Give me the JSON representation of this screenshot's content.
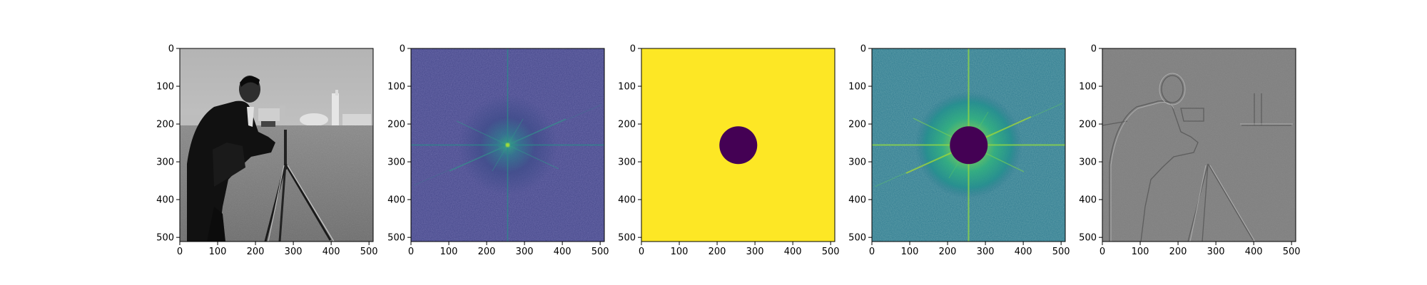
{
  "figure": {
    "panel_count": 5,
    "background": "#ffffff"
  },
  "chart_data": [
    {
      "type": "heatmap",
      "image_content": "grayscale photograph: man with camera on tripod, buildings on horizon, grass field",
      "colormap": "gray",
      "xlim": [
        0,
        511
      ],
      "ylim": [
        511,
        0
      ],
      "xticks": [
        0,
        100,
        200,
        300,
        400,
        500
      ],
      "yticks": [
        0,
        100,
        200,
        300,
        400,
        500
      ],
      "grid": false
    },
    {
      "type": "heatmap",
      "image_content": "centered log-magnitude Fourier spectrum of the photograph",
      "colormap": "viridis",
      "xlim": [
        0,
        511
      ],
      "ylim": [
        511,
        0
      ],
      "xticks": [
        0,
        100,
        200,
        300,
        400,
        500
      ],
      "yticks": [
        0,
        100,
        200,
        300,
        400,
        500
      ],
      "grid": false
    },
    {
      "type": "heatmap",
      "image_content": "circular mask: disc of value 0 centered at (256, 256) on a field of value 1",
      "colormap": "viridis",
      "mask_center": [
        256,
        256
      ],
      "mask_radius": 50,
      "xlim": [
        0,
        511
      ],
      "ylim": [
        511,
        0
      ],
      "xticks": [
        0,
        100,
        200,
        300,
        400,
        500
      ],
      "yticks": [
        0,
        100,
        200,
        300,
        400,
        500
      ],
      "grid": false
    },
    {
      "type": "heatmap",
      "image_content": "log spectrum after applying the mask (low frequencies removed)",
      "colormap": "viridis",
      "mask_center": [
        256,
        256
      ],
      "mask_radius": 50,
      "xlim": [
        0,
        511
      ],
      "ylim": [
        511,
        0
      ],
      "xticks": [
        0,
        100,
        200,
        300,
        400,
        500
      ],
      "yticks": [
        0,
        100,
        200,
        300,
        400,
        500
      ],
      "grid": false
    },
    {
      "type": "heatmap",
      "image_content": "high-pass filtered reconstruction: gray image with edge outlines",
      "colormap": "gray",
      "xlim": [
        0,
        511
      ],
      "ylim": [
        511,
        0
      ],
      "xticks": [
        0,
        100,
        200,
        300,
        400,
        500
      ],
      "yticks": [
        0,
        100,
        200,
        300,
        400,
        500
      ],
      "grid": false
    }
  ]
}
